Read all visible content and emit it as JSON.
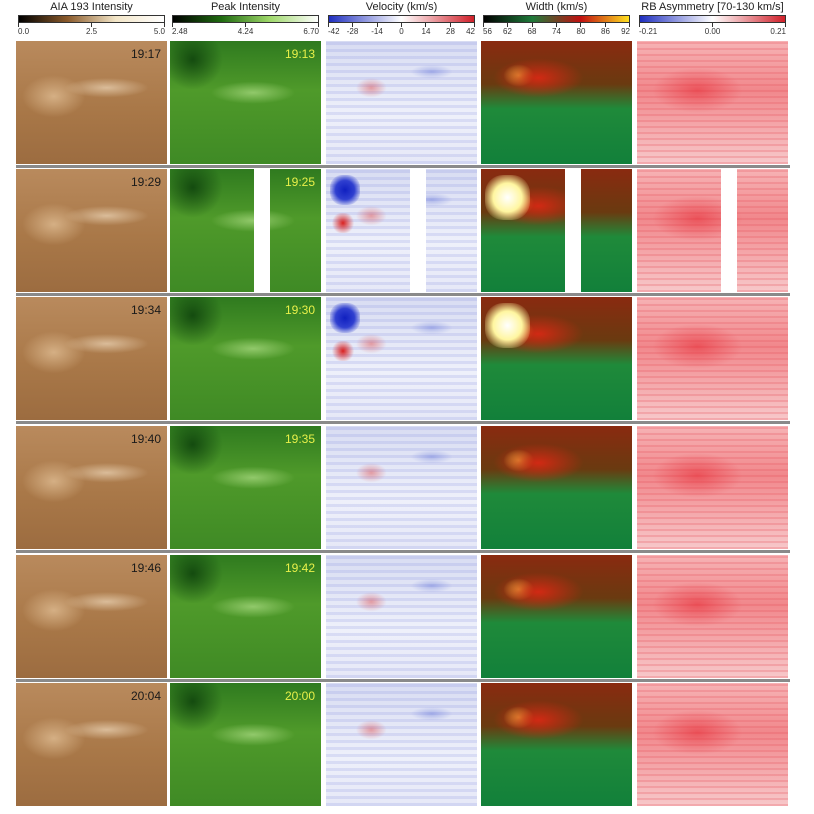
{
  "columns": [
    {
      "id": "aia",
      "title": "AIA 193 Intensity",
      "ticks": [
        "0.0",
        "2.5",
        "5.0"
      ],
      "colorbar": [
        "#000000",
        "#8a5a2b",
        "#f3e6c8",
        "#ffffff"
      ]
    },
    {
      "id": "peak",
      "title": "Peak Intensity",
      "ticks": [
        "2.48",
        "4.24",
        "6.70"
      ],
      "colorbar": [
        "#000000",
        "#1f6a10",
        "#9fd86a",
        "#ffffff"
      ]
    },
    {
      "id": "vel",
      "title": "Velocity (km/s)",
      "ticks": [
        "-42",
        "-28",
        "-14",
        "0",
        "14",
        "28",
        "42"
      ],
      "colorbar": [
        "#1f2fbf",
        "#ffffff",
        "#d0202a"
      ]
    },
    {
      "id": "wid",
      "title": "Width (km/s)",
      "ticks": [
        "56",
        "62",
        "68",
        "74",
        "80",
        "86",
        "92"
      ],
      "colorbar": [
        "#000000",
        "#1f7a3a",
        "#c01010",
        "#ffe020"
      ]
    },
    {
      "id": "asym",
      "title": "RB Asymmetry [70-130 km/s]",
      "ticks": [
        "-0.21",
        "0.00",
        "0.21"
      ],
      "colorbar": [
        "#1f2fbf",
        "#ffffff",
        "#d0202a"
      ]
    }
  ],
  "rows": [
    {
      "aia_time": "19:17",
      "eis_time": "19:13"
    },
    {
      "aia_time": "19:29",
      "eis_time": "19:25"
    },
    {
      "aia_time": "19:34",
      "eis_time": "19:30"
    },
    {
      "aia_time": "19:40",
      "eis_time": "19:35"
    },
    {
      "aia_time": "19:46",
      "eis_time": "19:42"
    },
    {
      "aia_time": "20:04",
      "eis_time": "20:00"
    }
  ]
}
